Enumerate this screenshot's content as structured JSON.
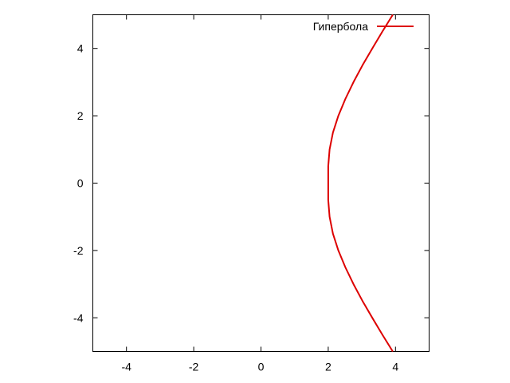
{
  "chart_data": {
    "type": "line",
    "title": "",
    "xlabel": "",
    "ylabel": "",
    "xlim": [
      -5,
      5
    ],
    "ylim": [
      -5,
      5
    ],
    "x_ticks": [
      -4,
      -2,
      0,
      2,
      4
    ],
    "y_ticks": [
      -4,
      -2,
      0,
      2,
      4
    ],
    "x_tick_labels": [
      "-4",
      "-2",
      "0",
      "2",
      "4"
    ],
    "y_tick_labels": [
      "-4",
      "-2",
      "0",
      "2",
      "4"
    ],
    "grid": false,
    "legend_position": "top-right",
    "series": [
      {
        "name": "Гипербола",
        "color": "#dd0000",
        "x": [
          3.92,
          3.61,
          3.31,
          3.02,
          2.75,
          2.51,
          2.3,
          2.14,
          2.04,
          2.0,
          2.0,
          2.04,
          2.14,
          2.3,
          2.51,
          2.75,
          3.02,
          3.31,
          3.61,
          3.92
        ],
        "y": [
          -5.0,
          -4.5,
          -4.0,
          -3.5,
          -3.0,
          -2.5,
          -2.0,
          -1.5,
          -1.0,
          -0.5,
          0.5,
          1.0,
          1.5,
          2.0,
          2.5,
          3.0,
          3.5,
          4.0,
          4.5,
          5.0
        ]
      }
    ]
  }
}
